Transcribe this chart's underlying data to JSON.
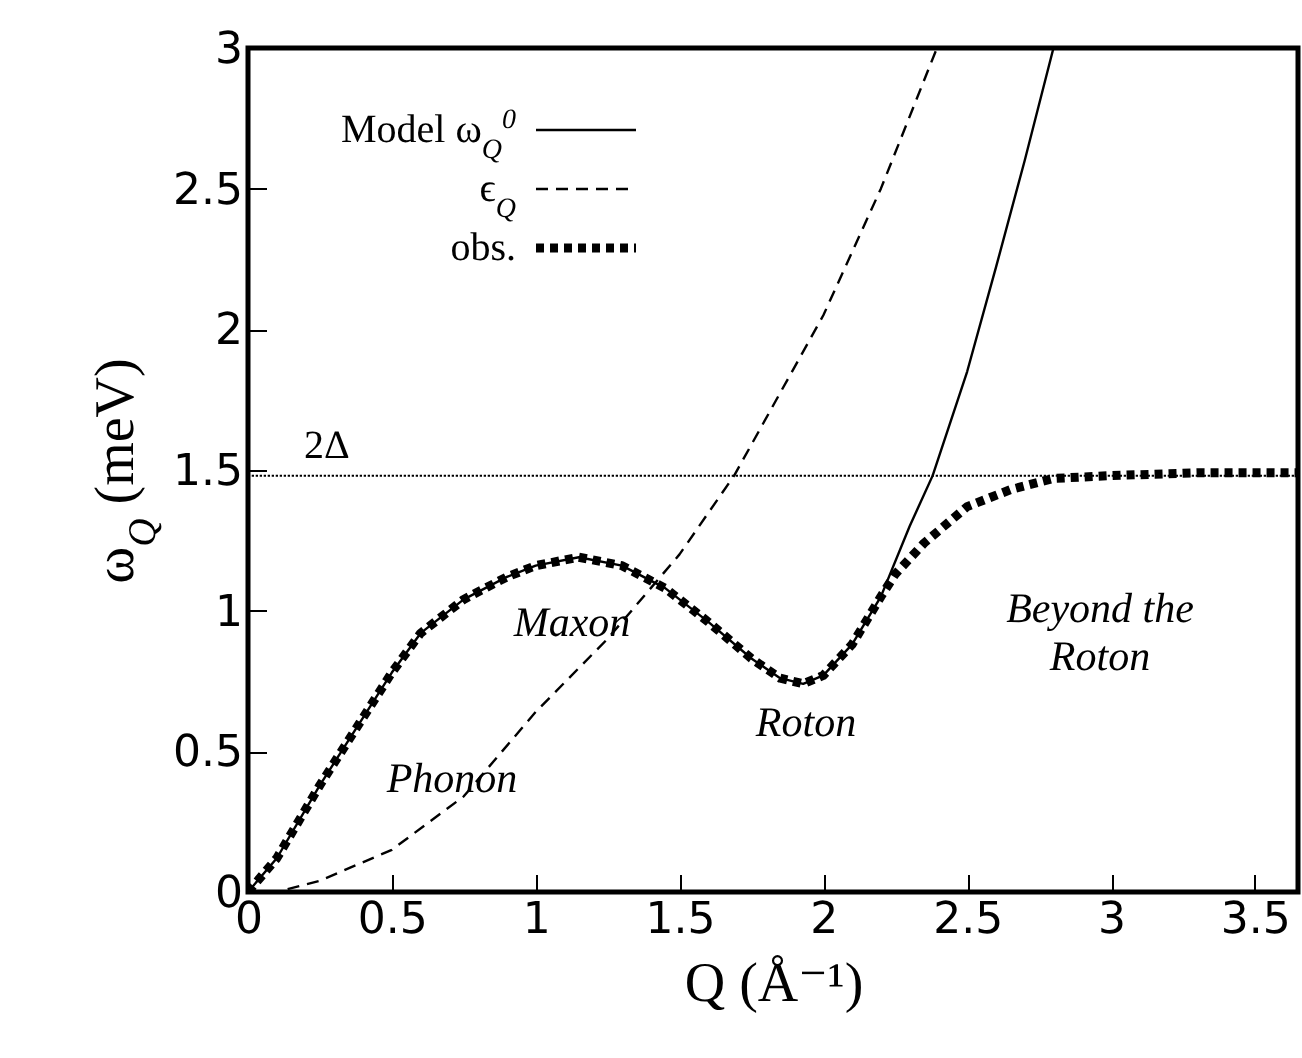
{
  "chart_data": {
    "type": "line",
    "xlabel": "Q (Å⁻¹)",
    "ylabel": "ω$_{Q}$ (meV)",
    "xlim": [
      0,
      3.65
    ],
    "ylim": [
      0,
      3
    ],
    "xticks": [
      0,
      0.5,
      1,
      1.5,
      2,
      2.5,
      3,
      3.5
    ],
    "yticks": [
      0,
      0.5,
      1,
      1.5,
      2,
      2.5,
      3
    ],
    "grid": false,
    "legend": "top left",
    "marker": "none",
    "series": [
      {
        "name": "Model ω$_{Q}$$^{0}$",
        "color": "#000000",
        "line_style": "solid",
        "x": [
          0,
          0.1,
          0.25,
          0.4,
          0.5,
          0.6,
          0.75,
          0.9,
          1.0,
          1.15,
          1.3,
          1.45,
          1.6,
          1.75,
          1.85,
          1.93,
          2.0,
          2.1,
          2.2,
          2.3,
          2.38,
          2.5,
          2.6,
          2.7,
          2.8
        ],
        "values": [
          0,
          0.12,
          0.38,
          0.62,
          0.78,
          0.92,
          1.04,
          1.12,
          1.16,
          1.19,
          1.16,
          1.08,
          0.96,
          0.83,
          0.76,
          0.74,
          0.77,
          0.88,
          1.05,
          1.3,
          1.48,
          1.85,
          2.22,
          2.6,
          3.0
        ]
      },
      {
        "name": "ϵ$_{Q}$",
        "color": "#000000",
        "line_style": "dashed",
        "x": [
          0,
          0.1,
          0.25,
          0.5,
          0.75,
          1.0,
          1.25,
          1.5,
          1.69,
          2.0,
          2.2,
          2.395
        ],
        "values": [
          0,
          0,
          0.04,
          0.15,
          0.34,
          0.64,
          0.9,
          1.2,
          1.48,
          2.05,
          2.5,
          3.0
        ]
      },
      {
        "name": "obs.",
        "color": "#000000",
        "line_style": "dotted",
        "x": [
          0,
          0.1,
          0.25,
          0.4,
          0.5,
          0.6,
          0.75,
          0.9,
          1.0,
          1.15,
          1.3,
          1.45,
          1.6,
          1.75,
          1.85,
          1.93,
          2.0,
          2.1,
          2.2,
          2.25,
          2.35,
          2.5,
          2.65,
          2.8,
          3.0,
          3.3,
          3.65
        ],
        "values": [
          0,
          0.12,
          0.38,
          0.62,
          0.78,
          0.92,
          1.04,
          1.12,
          1.16,
          1.19,
          1.16,
          1.08,
          0.96,
          0.83,
          0.76,
          0.74,
          0.77,
          0.88,
          1.05,
          1.13,
          1.24,
          1.37,
          1.43,
          1.47,
          1.48,
          1.49,
          1.49
        ]
      }
    ],
    "ref_lines": [
      {
        "axis": "y",
        "value": 1.48,
        "label": "2Δ",
        "line_style": "dotted"
      }
    ],
    "annotations": [
      "Phonon",
      "Maxon",
      "Roton",
      "Beyond the\nRoton"
    ]
  }
}
